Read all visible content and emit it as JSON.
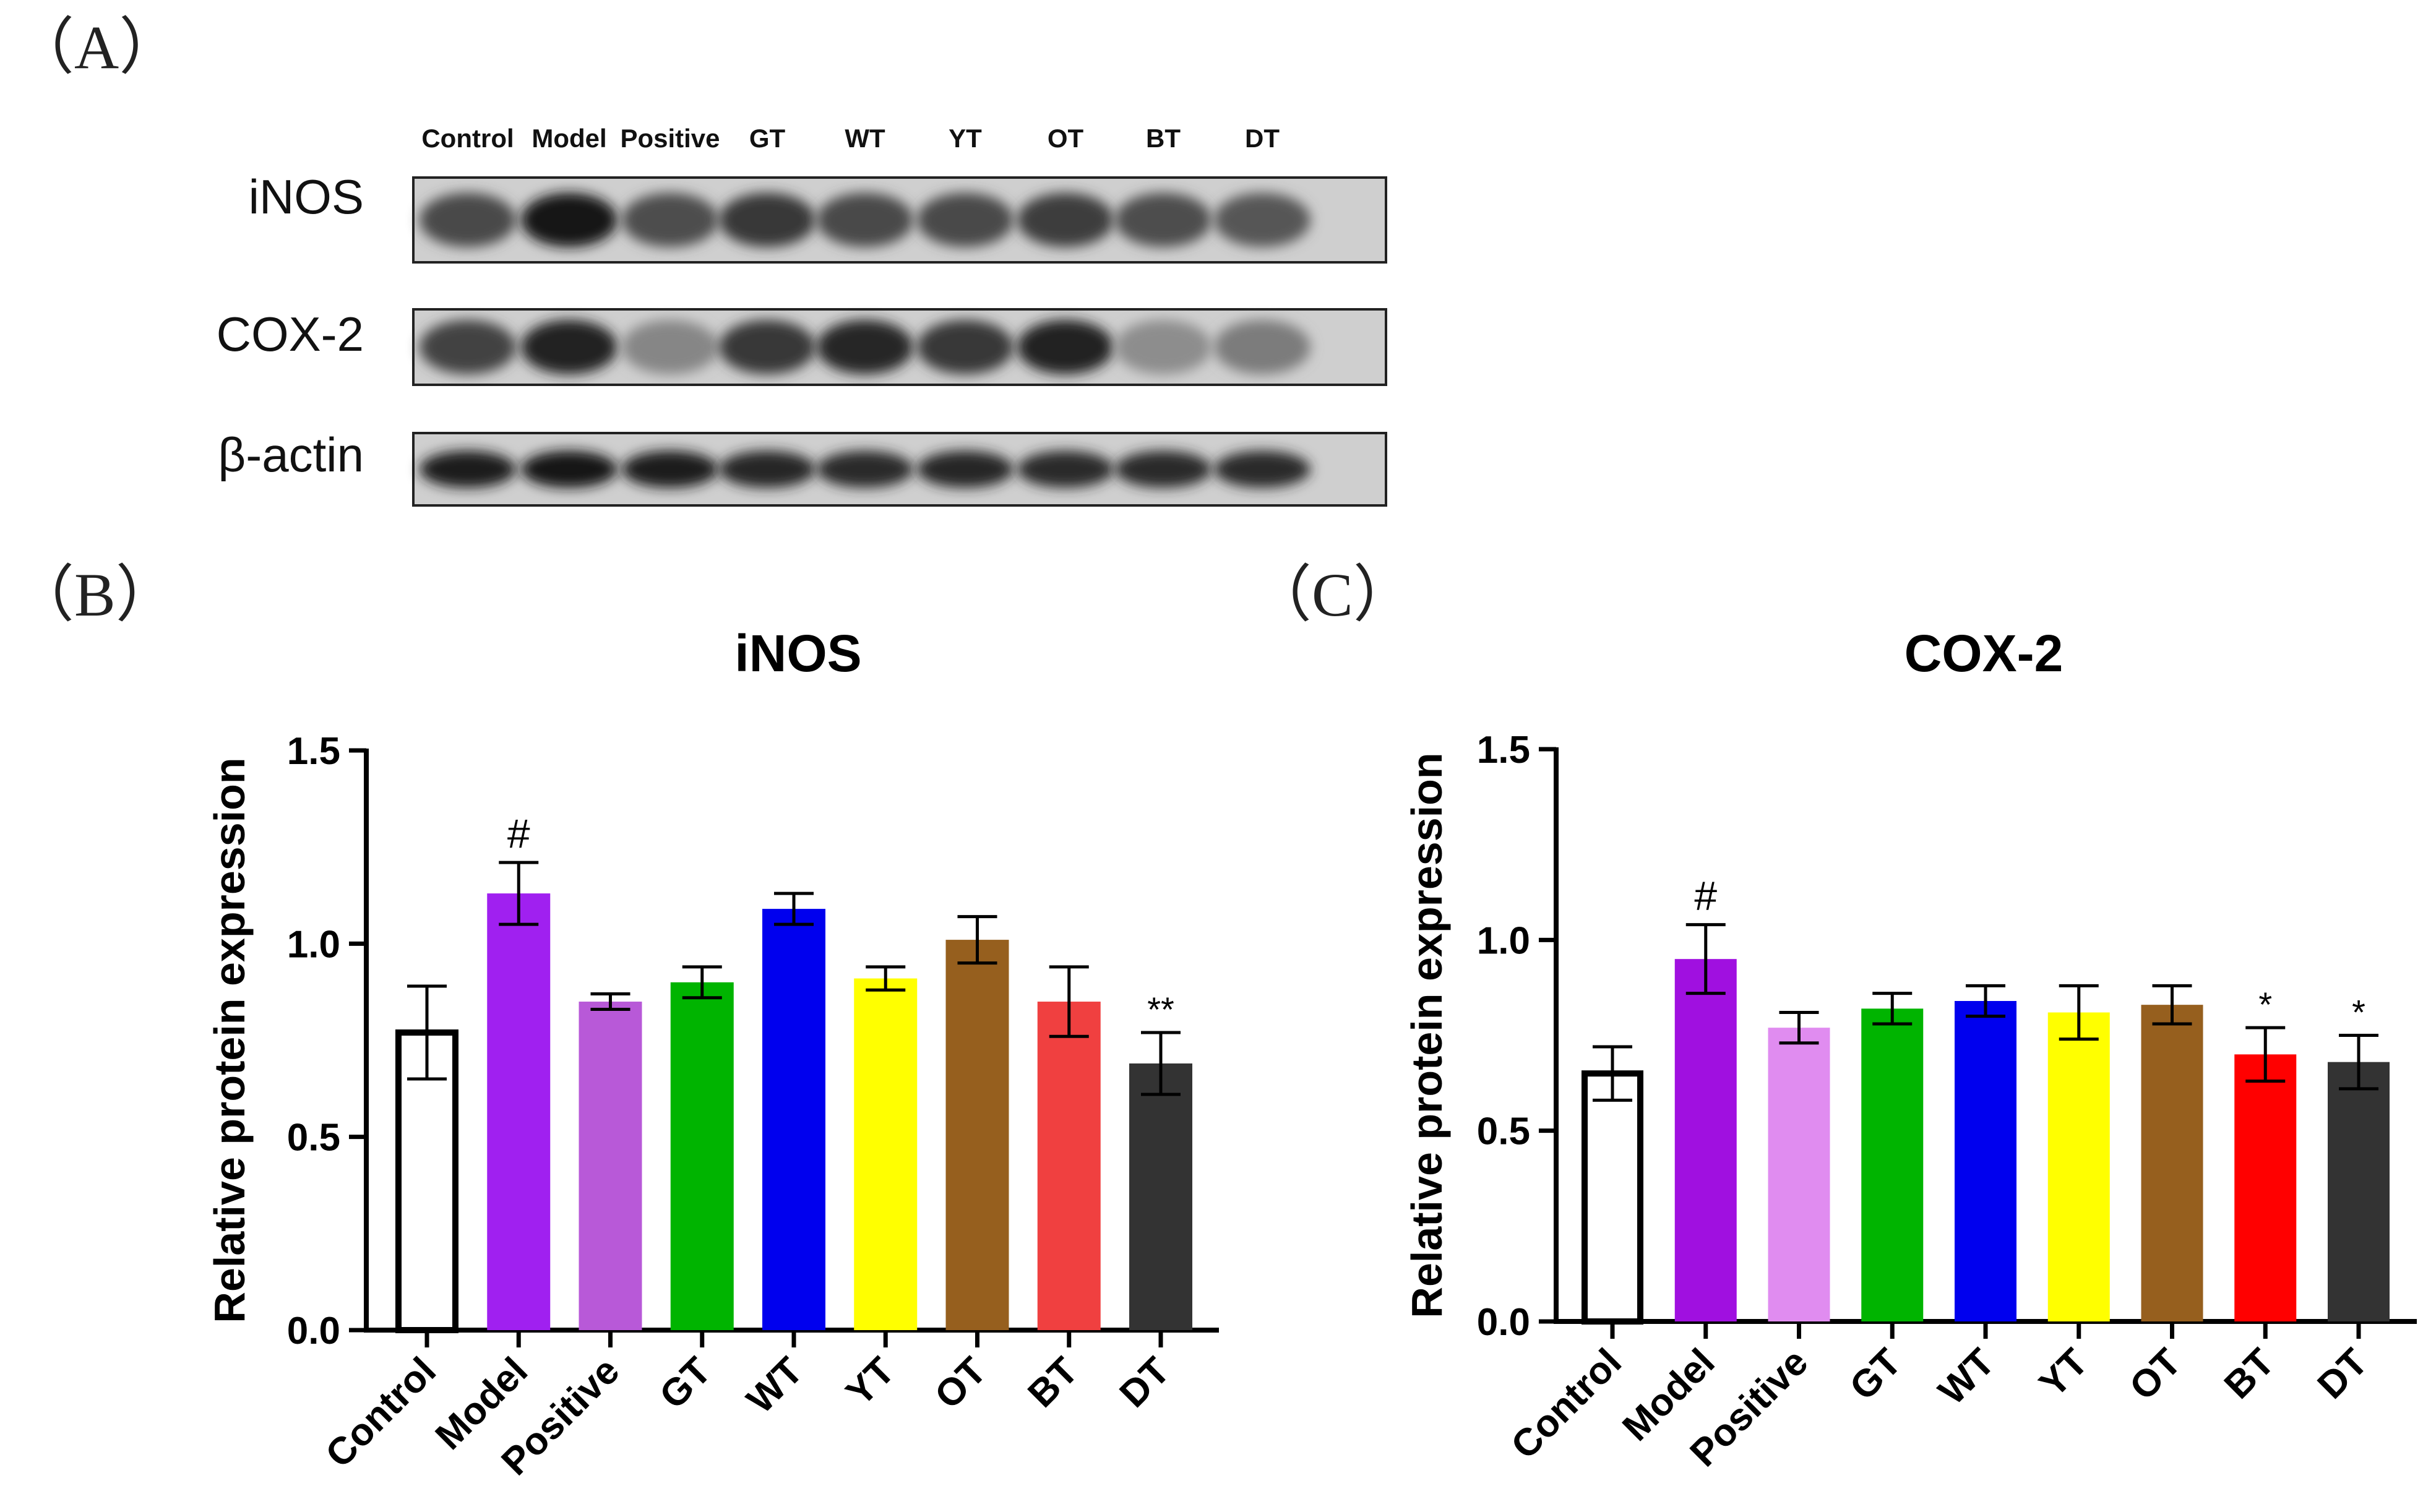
{
  "panels": {
    "a": "（A）",
    "b": "（B）",
    "c": "（C）"
  },
  "blot": {
    "lanes": [
      "Control",
      "Model",
      "Positive",
      "GT",
      "WT",
      "YT",
      "OT",
      "BT",
      "DT"
    ],
    "rows": [
      {
        "label": "iNOS",
        "intensity": [
          0.72,
          0.95,
          0.7,
          0.8,
          0.72,
          0.72,
          0.78,
          0.7,
          0.66
        ]
      },
      {
        "label": "COX-2",
        "intensity": [
          0.75,
          0.9,
          0.45,
          0.8,
          0.88,
          0.8,
          0.9,
          0.42,
          0.5
        ]
      },
      {
        "label": "β-actin",
        "intensity": [
          0.92,
          0.95,
          0.92,
          0.88,
          0.85,
          0.88,
          0.85,
          0.86,
          0.86
        ]
      }
    ]
  },
  "chart_data": [
    {
      "type": "bar",
      "title": "iNOS",
      "xlabel": "",
      "ylabel": "Relative protein expression",
      "ylim": [
        0,
        1.5
      ],
      "yticks": [
        "0.0",
        "0.5",
        "1.0",
        "1.5"
      ],
      "categories": [
        "Control",
        "Model",
        "Positive",
        "GT",
        "WT",
        "YT",
        "OT",
        "BT",
        "DT"
      ],
      "values": [
        0.77,
        1.13,
        0.85,
        0.9,
        1.09,
        0.91,
        1.01,
        0.85,
        0.69
      ],
      "errors": [
        0.12,
        0.08,
        0.02,
        0.04,
        0.04,
        0.03,
        0.06,
        0.09,
        0.08
      ],
      "annotations": [
        "",
        "#",
        "",
        "",
        "",
        "",
        "",
        "",
        "**"
      ],
      "colors": [
        "#ffffff",
        "#a020f0",
        "#b859d8",
        "#00b400",
        "#0000ee",
        "#ffff00",
        "#965f1e",
        "#f04040",
        "#333333"
      ],
      "grid": false
    },
    {
      "type": "bar",
      "title": "COX-2",
      "xlabel": "",
      "ylabel": "Relative protein expression",
      "ylim": [
        0,
        1.5
      ],
      "yticks": [
        "0.0",
        "0.5",
        "1.0",
        "1.5"
      ],
      "categories": [
        "Control",
        "Model",
        "Positive",
        "GT",
        "WT",
        "YT",
        "OT",
        "BT",
        "DT"
      ],
      "values": [
        0.65,
        0.95,
        0.77,
        0.82,
        0.84,
        0.81,
        0.83,
        0.7,
        0.68
      ],
      "errors": [
        0.07,
        0.09,
        0.04,
        0.04,
        0.04,
        0.07,
        0.05,
        0.07,
        0.07
      ],
      "annotations": [
        "",
        "#",
        "",
        "",
        "",
        "",
        "",
        "*",
        "*"
      ],
      "colors": [
        "#ffffff",
        "#a010e0",
        "#e08cf0",
        "#00b400",
        "#0000ee",
        "#ffff00",
        "#965f1e",
        "#ff0000",
        "#333333"
      ],
      "grid": false
    }
  ]
}
